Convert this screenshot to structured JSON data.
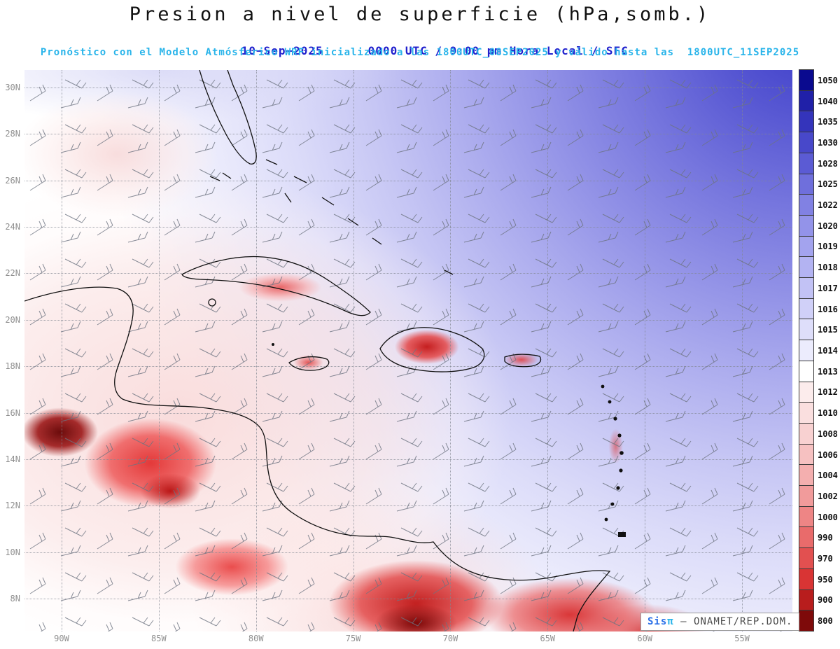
{
  "title": "Presion a nivel de superficie (hPa,somb.)",
  "header": {
    "date": "10−Sep−2025",
    "time_line": "0000 UTC / 9:00 pm Hora Local / SFC",
    "model_line": "Pronóstico con el Modelo Atmósferico WRF inicializado a las 1800UTC_08SEP2025 y válido hasta las  1800UTC_11SEP2025"
  },
  "credit": {
    "brand": "Sis",
    "brand_symbol": "π",
    "text": "– ONAMET/REP.DOM."
  },
  "chart_data": {
    "type": "heatmap",
    "title": "Presion a nivel de superficie (hPa,somb.)",
    "variable": "surface pressure (hPa), shaded, with wind barbs",
    "model": "WRF",
    "level": "SFC",
    "valid_time": "10−Sep−2025 0000 UTC / 9:00 pm Hora Local",
    "init_time": "1800UTC_08SEP2025",
    "valid_until": "1800UTC_11SEP2025",
    "lat_ticks": [
      "30N",
      "28N",
      "26N",
      "24N",
      "22N",
      "20N",
      "18N",
      "16N",
      "14N",
      "12N",
      "10N",
      "8N"
    ],
    "lon_ticks": [
      "90W",
      "85W",
      "80W",
      "75W",
      "70W",
      "65W",
      "60W",
      "55W"
    ],
    "colorbar": {
      "units": "hPa",
      "levels": [
        1050,
        1040,
        1035,
        1030,
        1028,
        1025,
        1022,
        1020,
        1019,
        1018,
        1017,
        1016,
        1015,
        1014,
        1013,
        1012,
        1010,
        1008,
        1006,
        1004,
        1002,
        1000,
        990,
        970,
        950,
        900,
        800
      ],
      "colors": [
        "#0a0a8f",
        "#2020a8",
        "#3434bb",
        "#4848ca",
        "#5b5bd4",
        "#6f6fdc",
        "#8181e3",
        "#9393e9",
        "#a3a3ee",
        "#b3b3f2",
        "#c2c2f5",
        "#d0d0f8",
        "#dedefa",
        "#ececfd",
        "#ffffff",
        "#fcecec",
        "#fadfdf",
        "#f8d1d1",
        "#f6c1c1",
        "#f4afaf",
        "#f19b9b",
        "#ee8585",
        "#e96b6b",
        "#e25050",
        "#d93434",
        "#b81d1d",
        "#7e0a0a"
      ]
    },
    "shading_summary": {
      "high_pressure_shading": "blue bands over northeast Atlantic quadrant (approx 1016-1028+ hPa), strongest toward top-right corner",
      "neutral_band": "white band (~1013-1014 hPa) running diagonally from ~80W/30N toward ~55W/12N",
      "low_pressure_shading": "pink to dark red over Central America, western Caribbean land, Cuba, Jamaica, Hispaniola, Puerto Rico and northern South America (approx 1012 down past 1000 hPa over terrain)"
    },
    "accent_colors": {
      "subtitle_blue": "#2121cd",
      "subtitle_cyan": "#29b4ea",
      "axis_gray": "#8f8f8f"
    }
  }
}
